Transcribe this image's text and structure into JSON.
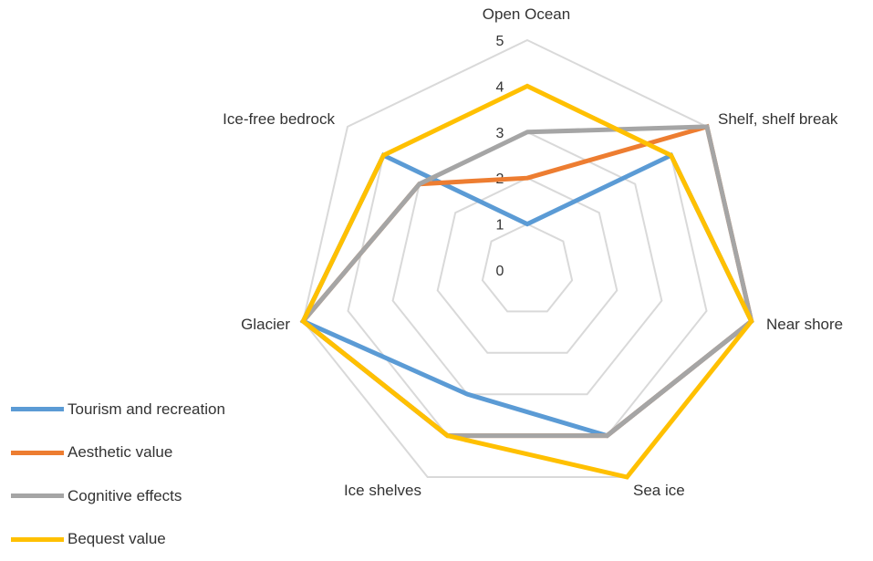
{
  "chart_data": {
    "type": "radar",
    "title": "",
    "categories": [
      "Open Ocean",
      "Shelf, shelf break",
      "Near shore",
      "Sea ice",
      "Ice shelves",
      "Glacier",
      "Ice-free bedrock"
    ],
    "r_ticks": [
      "0",
      "1",
      "2",
      "3",
      "4",
      "5"
    ],
    "rlim": [
      0,
      5
    ],
    "grid": true,
    "legend_position": "bottom-left",
    "series": [
      {
        "name": "Tourism and recreation",
        "color": "#5B9BD5",
        "values": [
          1,
          4,
          5,
          4,
          3,
          5,
          4
        ]
      },
      {
        "name": "Aesthetic value",
        "color": "#ED7D31",
        "values": [
          2,
          5,
          5,
          4,
          4,
          5,
          3
        ]
      },
      {
        "name": "Cognitive effects",
        "color": "#A5A5A5",
        "values": [
          3,
          5,
          5,
          4,
          4,
          5,
          3
        ]
      },
      {
        "name": "Bequest value",
        "color": "#FFC000",
        "values": [
          4,
          4,
          5,
          5,
          4,
          5,
          4
        ]
      }
    ]
  }
}
